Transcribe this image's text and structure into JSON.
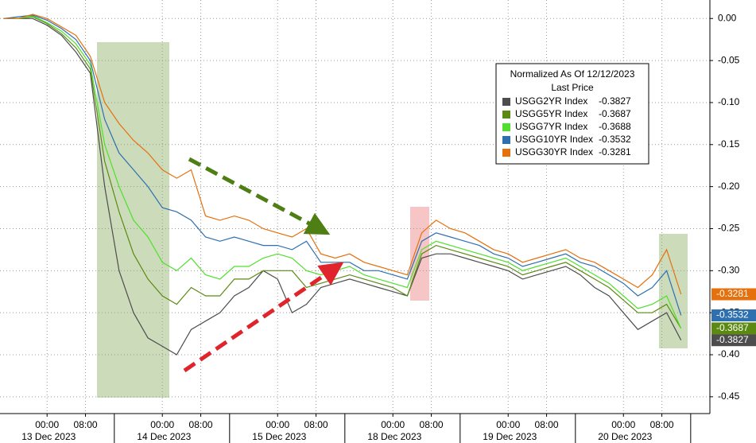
{
  "chart_data": {
    "type": "line",
    "legend_title": "Normalized As Of 12/12/2023",
    "legend_subtitle": "Last Price",
    "x": [
      -9,
      -6,
      -3,
      0,
      3,
      6,
      9,
      12,
      15,
      18,
      21,
      24,
      27,
      30,
      33,
      36,
      39,
      42,
      45,
      48,
      51,
      54,
      57,
      60,
      63,
      66,
      69,
      72,
      75,
      78,
      81,
      84,
      87,
      90,
      93,
      96,
      99,
      102,
      105,
      108,
      111,
      114,
      117,
      120,
      123,
      126,
      129,
      132
    ],
    "xlim": [
      -9.8,
      138
    ],
    "xticks": [
      {
        "value": 0,
        "label": "00:00"
      },
      {
        "value": 8,
        "label": "08:00"
      },
      {
        "value": 24,
        "label": "00:00"
      },
      {
        "value": 32,
        "label": "08:00"
      },
      {
        "value": 48,
        "label": "00:00"
      },
      {
        "value": 56,
        "label": "08:00"
      },
      {
        "value": 72,
        "label": "00:00"
      },
      {
        "value": 80,
        "label": "08:00"
      },
      {
        "value": 96,
        "label": "00:00"
      },
      {
        "value": 104,
        "label": "08:00"
      },
      {
        "value": 120,
        "label": "00:00"
      },
      {
        "value": 128,
        "label": "08:00"
      }
    ],
    "dates": [
      "13 Dec 2023",
      "14 Dec 2023",
      "15 Dec 2023",
      "18 Dec 2023",
      "19 Dec 2023",
      "20 Dec 2023"
    ],
    "ylim": [
      -0.47,
      0.022
    ],
    "yticks": [
      {
        "value": 0,
        "label": "0.00"
      },
      {
        "value": -0.05,
        "label": "-0.05"
      },
      {
        "value": -0.1,
        "label": "-0.10"
      },
      {
        "value": -0.15,
        "label": "-0.15"
      },
      {
        "value": -0.2,
        "label": "-0.20"
      },
      {
        "value": -0.25,
        "label": "-0.25"
      },
      {
        "value": -0.3,
        "label": "-0.30"
      },
      {
        "value": -0.35,
        "label": "-0.35"
      },
      {
        "value": -0.4,
        "label": "-0.40"
      },
      {
        "value": -0.45,
        "label": "-0.45"
      }
    ],
    "grid": true,
    "series": [
      {
        "name": "USGG2YR Index",
        "color": "#4d4d4d",
        "tag": true,
        "values": [
          0.0,
          0.0,
          0.0,
          -0.008,
          -0.02,
          -0.04,
          -0.065,
          -0.2,
          -0.3,
          -0.35,
          -0.38,
          -0.39,
          -0.4,
          -0.37,
          -0.36,
          -0.35,
          -0.33,
          -0.32,
          -0.3,
          -0.31,
          -0.35,
          -0.34,
          -0.32,
          -0.315,
          -0.31,
          -0.315,
          -0.32,
          -0.325,
          -0.33,
          -0.285,
          -0.28,
          -0.28,
          -0.285,
          -0.29,
          -0.295,
          -0.3,
          -0.31,
          -0.305,
          -0.3,
          -0.295,
          -0.305,
          -0.32,
          -0.33,
          -0.35,
          -0.37,
          -0.36,
          -0.35,
          -0.3827
        ]
      },
      {
        "name": "USGG5YR Index",
        "color": "#5b8a12",
        "tag": true,
        "values": [
          0.0,
          0.0,
          0.002,
          -0.006,
          -0.018,
          -0.035,
          -0.06,
          -0.17,
          -0.23,
          -0.28,
          -0.31,
          -0.33,
          -0.34,
          -0.32,
          -0.33,
          -0.33,
          -0.31,
          -0.31,
          -0.3,
          -0.3,
          -0.3,
          -0.32,
          -0.315,
          -0.31,
          -0.305,
          -0.31,
          -0.315,
          -0.32,
          -0.33,
          -0.28,
          -0.27,
          -0.275,
          -0.28,
          -0.285,
          -0.29,
          -0.295,
          -0.305,
          -0.3,
          -0.295,
          -0.29,
          -0.3,
          -0.31,
          -0.32,
          -0.335,
          -0.35,
          -0.35,
          -0.34,
          -0.3687
        ]
      },
      {
        "name": "USGG7YR Index",
        "color": "#4ee02c",
        "tag": false,
        "values": [
          0.0,
          0.0,
          0.003,
          -0.005,
          -0.015,
          -0.03,
          -0.055,
          -0.15,
          -0.2,
          -0.24,
          -0.26,
          -0.29,
          -0.3,
          -0.285,
          -0.305,
          -0.31,
          -0.295,
          -0.295,
          -0.285,
          -0.28,
          -0.285,
          -0.3,
          -0.305,
          -0.3,
          -0.295,
          -0.305,
          -0.31,
          -0.315,
          -0.32,
          -0.275,
          -0.265,
          -0.27,
          -0.275,
          -0.28,
          -0.285,
          -0.29,
          -0.3,
          -0.295,
          -0.29,
          -0.285,
          -0.295,
          -0.305,
          -0.315,
          -0.33,
          -0.345,
          -0.34,
          -0.33,
          -0.3688
        ]
      },
      {
        "name": "USGG10YR Index",
        "color": "#2e6fb0",
        "tag": true,
        "values": [
          0.0,
          0.002,
          0.004,
          -0.002,
          -0.012,
          -0.025,
          -0.05,
          -0.12,
          -0.16,
          -0.18,
          -0.2,
          -0.225,
          -0.23,
          -0.24,
          -0.26,
          -0.265,
          -0.26,
          -0.265,
          -0.27,
          -0.27,
          -0.275,
          -0.265,
          -0.29,
          -0.29,
          -0.29,
          -0.3,
          -0.3,
          -0.305,
          -0.31,
          -0.265,
          -0.255,
          -0.26,
          -0.265,
          -0.27,
          -0.28,
          -0.285,
          -0.295,
          -0.29,
          -0.285,
          -0.28,
          -0.29,
          -0.295,
          -0.305,
          -0.315,
          -0.33,
          -0.32,
          -0.3,
          -0.3532
        ]
      },
      {
        "name": "USGG30YR Index",
        "color": "#e5700c",
        "tag": true,
        "values": [
          0.0,
          0.0,
          0.005,
          0.0,
          -0.01,
          -0.02,
          -0.045,
          -0.1,
          -0.125,
          -0.145,
          -0.16,
          -0.18,
          -0.19,
          -0.18,
          -0.235,
          -0.24,
          -0.235,
          -0.24,
          -0.25,
          -0.255,
          -0.26,
          -0.25,
          -0.28,
          -0.285,
          -0.28,
          -0.29,
          -0.295,
          -0.3,
          -0.305,
          -0.255,
          -0.24,
          -0.25,
          -0.255,
          -0.265,
          -0.275,
          -0.28,
          -0.29,
          -0.285,
          -0.28,
          -0.275,
          -0.285,
          -0.29,
          -0.3,
          -0.31,
          -0.32,
          -0.305,
          -0.275,
          -0.3281
        ]
      }
    ]
  }
}
